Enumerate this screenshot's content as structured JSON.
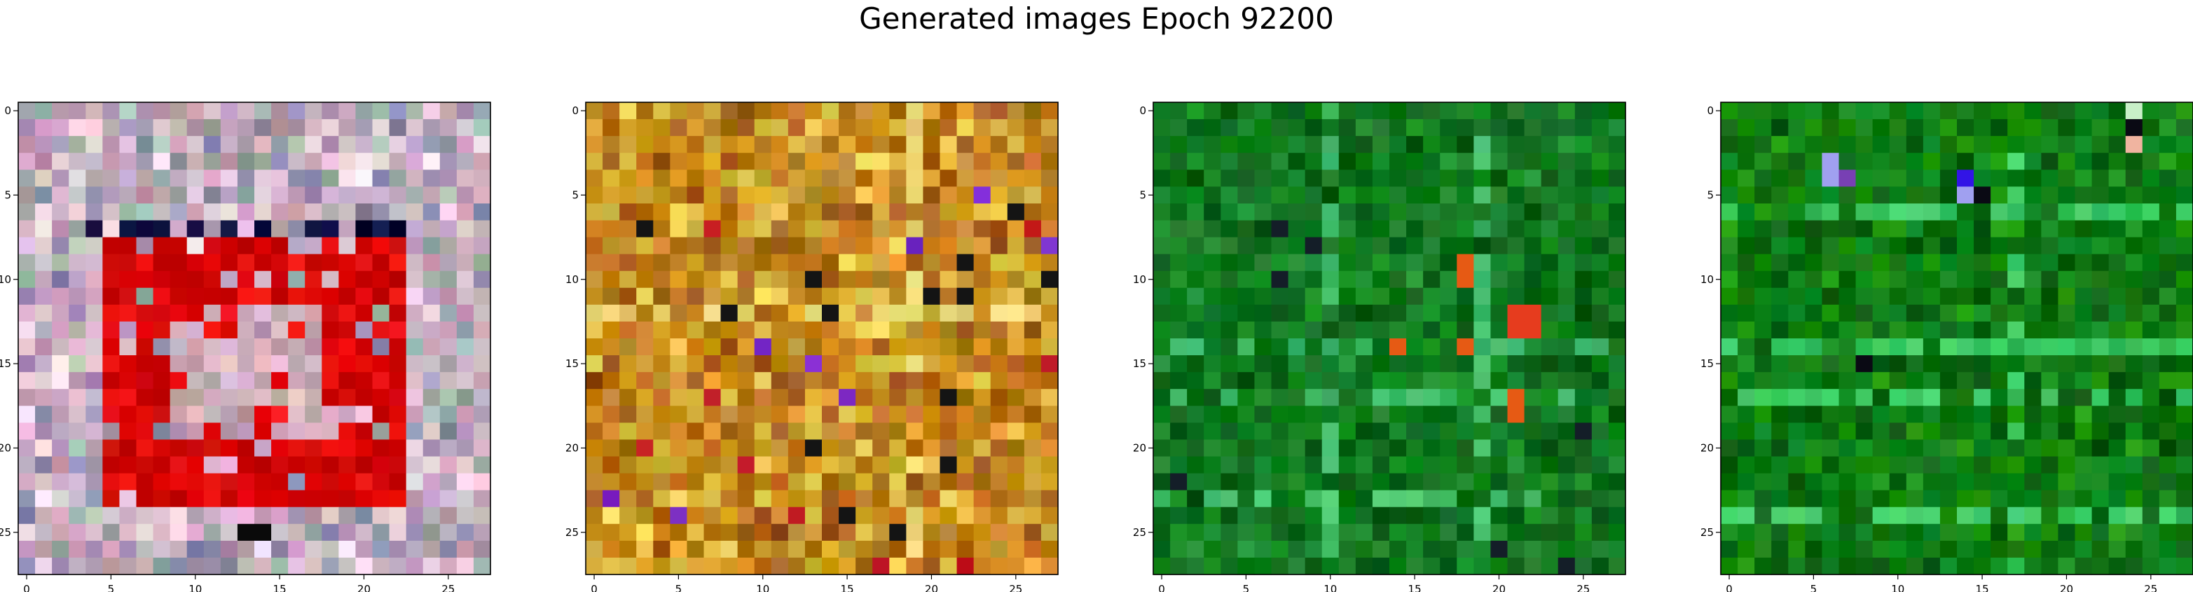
{
  "figure": {
    "title": "Generated images Epoch 92200"
  },
  "chart_data": [
    {
      "type": "heatmap",
      "panel": 1,
      "rows": 28,
      "cols": 28,
      "xticks": [
        "0",
        "5",
        "10",
        "15",
        "20",
        "25"
      ],
      "yticks": [
        "0",
        "5",
        "10",
        "15",
        "20",
        "25"
      ],
      "xlim": [
        -0.5,
        27.5
      ],
      "ylim": [
        27.5,
        -0.5
      ],
      "grid": false,
      "palette": [
        "#c8a0b4",
        "#b49bbe",
        "#d2c3c8",
        "#a0b4aa",
        "#e6d2dc",
        "#beaab9",
        "#8c8caa",
        "#dcb4d2"
      ],
      "pattern": "red square outline on pastel noise",
      "accent_colors": {
        "square": "#e60a0a",
        "square_dark": "#c80000",
        "dark_row": "#0a0a3c",
        "center": "#c8aab4"
      }
    },
    {
      "type": "heatmap",
      "panel": 2,
      "rows": 28,
      "cols": 28,
      "xticks": [
        "0",
        "5",
        "10",
        "15",
        "20",
        "25"
      ],
      "yticks": [
        "0",
        "5",
        "10",
        "15",
        "20",
        "25"
      ],
      "xlim": [
        -0.5,
        27.5
      ],
      "ylim": [
        27.5,
        -0.5
      ],
      "grid": false,
      "palette": [
        "#c88c14",
        "#d2a01e",
        "#b46e0a",
        "#e6c850",
        "#c87828",
        "#a05a1e",
        "#d2b43c",
        "#be8c32",
        "#dc9628",
        "#aa7814"
      ],
      "pattern": "orange and yellow noise with faint cross",
      "accent_colors": {
        "cross": "#eed878",
        "spot_dark": "#141414",
        "spot_red": "#c81e28",
        "spot_purple": "#7828c8"
      }
    },
    {
      "type": "heatmap",
      "panel": 3,
      "rows": 28,
      "cols": 28,
      "xticks": [
        "0",
        "5",
        "10",
        "15",
        "20",
        "25"
      ],
      "yticks": [
        "0",
        "5",
        "10",
        "15",
        "20",
        "25"
      ],
      "xlim": [
        -0.5,
        27.5
      ],
      "ylim": [
        27.5,
        -0.5
      ],
      "grid": false,
      "palette": [
        "#0a6e1e",
        "#147d28",
        "#0a5a14",
        "#1e8c32",
        "#057814",
        "#148c1e",
        "#0a641e",
        "#1e7828"
      ],
      "pattern": "green noise with light green grid lines",
      "accent_colors": {
        "grid_line": "#46be6e",
        "spot_orange": "#e65a14",
        "spot_red": "#e63c1e",
        "spot_dark": "#141e28"
      }
    },
    {
      "type": "heatmap",
      "panel": 4,
      "rows": 28,
      "cols": 28,
      "xticks": [
        "0",
        "5",
        "10",
        "15",
        "20",
        "25"
      ],
      "yticks": [
        "0",
        "5",
        "10",
        "15",
        "20",
        "25"
      ],
      "xlim": [
        -0.5,
        27.5
      ],
      "ylim": [
        27.5,
        -0.5
      ],
      "grid": false,
      "palette": [
        "#0a7814",
        "#148c1e",
        "#0a6414",
        "#1e960a",
        "#05821e",
        "#0f6e0a",
        "#148214",
        "#0a5a0f"
      ],
      "pattern": "green noise with bright horizontal bands",
      "accent_colors": {
        "band": "#3cc864",
        "spot_blue": "#3214e6",
        "spot_lavender": "#a0a0f0",
        "spot_dark": "#0a0a14",
        "spot_pink": "#f0b4a0"
      }
    }
  ]
}
